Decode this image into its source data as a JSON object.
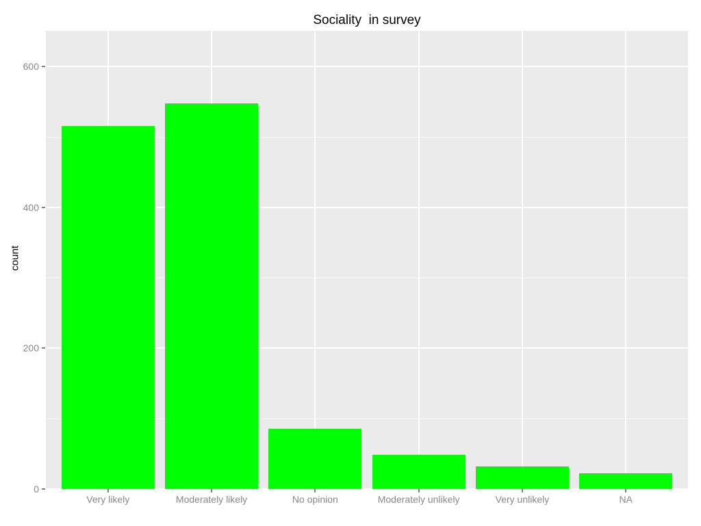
{
  "title": "Sociality  in survey",
  "chart_data": {
    "type": "bar",
    "title": "Sociality  in survey",
    "categories": [
      "Very likely",
      "Moderately likely",
      "No opinion",
      "Moderately unlikely",
      "Very unlikely",
      "NA"
    ],
    "values": [
      516,
      548,
      86,
      49,
      32,
      22
    ],
    "xlabel": "",
    "ylabel": "count",
    "ylim": [
      0,
      651
    ],
    "yticks": [
      0,
      200,
      400,
      600
    ],
    "yticks_minor": [
      100,
      300,
      500
    ],
    "grid": true,
    "legend_position": "none",
    "style": {
      "bar_color": "#00FF00",
      "panel_background": "#EBEBEB",
      "grid_color": "#FFFFFF",
      "axis_text_color": "#888888",
      "title_color": "#000000"
    }
  }
}
